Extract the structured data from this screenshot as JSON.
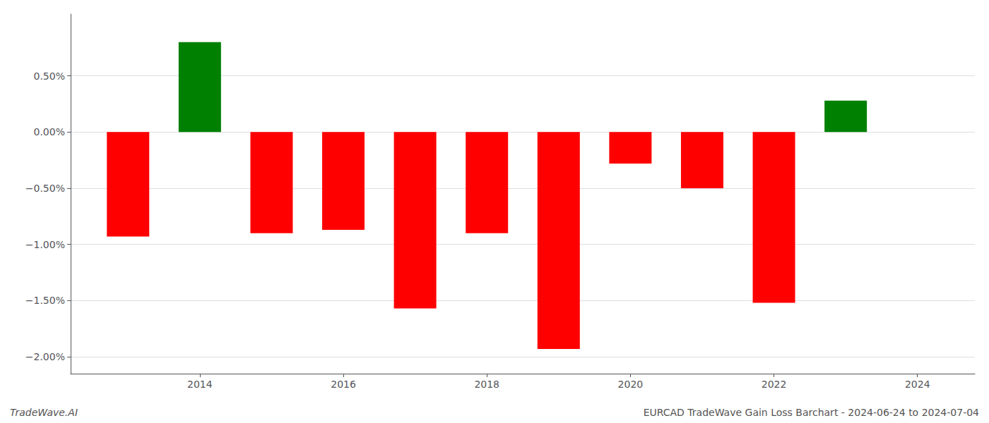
{
  "chart_data": {
    "type": "bar",
    "x": [
      2013,
      2014,
      2015,
      2016,
      2017,
      2018,
      2019,
      2020,
      2021,
      2022,
      2023
    ],
    "values": [
      -0.93,
      0.8,
      -0.9,
      -0.87,
      -1.57,
      -0.9,
      -1.93,
      -0.28,
      -0.5,
      -1.52,
      0.28
    ],
    "colors": [
      "#ff0000",
      "#008000",
      "#ff0000",
      "#ff0000",
      "#ff0000",
      "#ff0000",
      "#ff0000",
      "#ff0000",
      "#ff0000",
      "#ff0000",
      "#008000"
    ],
    "xlim": [
      2012.2,
      2024.8
    ],
    "xticks": [
      2014,
      2016,
      2018,
      2020,
      2022,
      2024
    ],
    "ylim": [
      -2.15,
      1.05
    ],
    "yticks": [
      {
        "value": -2.0,
        "label": "−2.00%"
      },
      {
        "value": -1.5,
        "label": "−1.50%"
      },
      {
        "value": -1.0,
        "label": "−1.00%"
      },
      {
        "value": -0.5,
        "label": "−0.50%"
      },
      {
        "value": 0.0,
        "label": "0.00%"
      },
      {
        "value": 0.5,
        "label": "0.50%"
      }
    ],
    "grid": true,
    "annotations": [
      "TradeWave.AI",
      "EURCAD TradeWave Gain Loss Barchart - 2024-06-24 to 2024-07-04"
    ]
  }
}
